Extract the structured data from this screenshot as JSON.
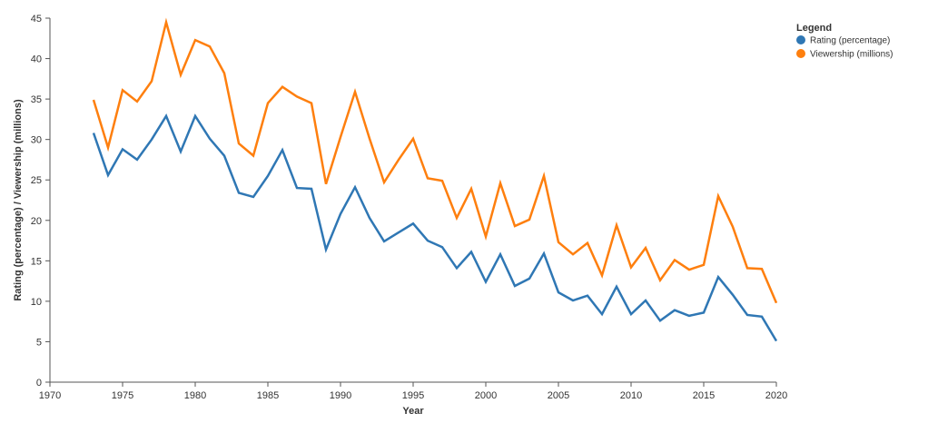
{
  "chart_data": {
    "type": "line",
    "xlabel": "Year",
    "ylabel": "Rating (percentage) / Viewership (millions)",
    "xlim": [
      1970,
      2020
    ],
    "ylim": [
      0,
      45
    ],
    "x_ticks": [
      1970,
      1975,
      1980,
      1985,
      1990,
      1995,
      2000,
      2005,
      2010,
      2015,
      2020
    ],
    "y_ticks": [
      0,
      5,
      10,
      15,
      20,
      25,
      30,
      35,
      40,
      45
    ],
    "grid": false,
    "legend": {
      "title": "Legend",
      "position": "top-right"
    },
    "x": [
      1973,
      1974,
      1975,
      1976,
      1977,
      1978,
      1979,
      1980,
      1981,
      1982,
      1983,
      1984,
      1985,
      1986,
      1987,
      1988,
      1989,
      1990,
      1991,
      1992,
      1993,
      1994,
      1995,
      1996,
      1997,
      1998,
      1999,
      2000,
      2001,
      2002,
      2003,
      2004,
      2005,
      2006,
      2007,
      2008,
      2009,
      2010,
      2011,
      2012,
      2013,
      2014,
      2015,
      2016,
      2017,
      2018,
      2019,
      2020
    ],
    "series": [
      {
        "name": "Rating (percentage)",
        "color": "#2f77b4",
        "values": [
          30.8,
          25.6,
          28.8,
          27.5,
          30.0,
          32.9,
          28.5,
          32.9,
          30.1,
          28.0,
          23.4,
          22.9,
          25.5,
          28.7,
          24.0,
          23.9,
          16.4,
          20.8,
          24.1,
          20.3,
          17.4,
          18.5,
          19.6,
          17.5,
          16.7,
          14.1,
          16.1,
          12.4,
          15.8,
          11.9,
          12.8,
          15.9,
          11.1,
          10.1,
          10.7,
          8.4,
          11.8,
          8.4,
          10.1,
          7.6,
          8.9,
          8.2,
          8.6,
          13.0,
          10.8,
          8.3,
          8.1,
          5.1
        ]
      },
      {
        "name": "Viewership (millions)",
        "color": "#fe7f0e",
        "values": [
          34.9,
          29.0,
          36.1,
          34.7,
          37.2,
          44.5,
          38.0,
          42.3,
          41.5,
          38.2,
          29.5,
          28.0,
          34.5,
          36.5,
          35.3,
          34.5,
          24.5,
          30.3,
          35.9,
          30.1,
          24.7,
          27.5,
          30.1,
          25.2,
          24.9,
          20.3,
          23.9,
          18.0,
          24.6,
          19.3,
          20.1,
          25.5,
          17.3,
          15.8,
          17.2,
          13.2,
          19.4,
          14.2,
          16.6,
          12.6,
          15.1,
          13.9,
          14.5,
          23.0,
          19.2,
          14.1,
          14.0,
          9.8
        ]
      }
    ]
  }
}
